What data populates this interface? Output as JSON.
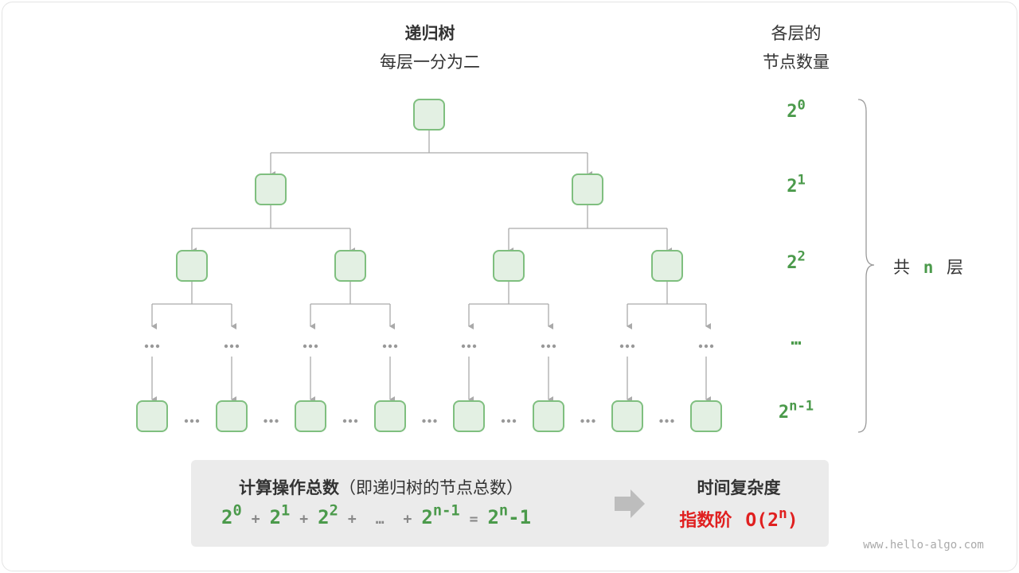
{
  "title": "递归树",
  "subtitle": "每层一分为二",
  "right_header": [
    "各层的",
    "节点数量"
  ],
  "levels": [
    {
      "base": "2",
      "exp": "0"
    },
    {
      "base": "2",
      "exp": "1"
    },
    {
      "base": "2",
      "exp": "2"
    },
    {
      "base": "…",
      "exp": ""
    },
    {
      "base": "2",
      "exp": "n-1"
    }
  ],
  "brace_label": {
    "pre": "共",
    "n": "n",
    "post": "层"
  },
  "summary": {
    "title": "计算操作总数",
    "title_note": "（即递归树的节点总数）",
    "formula": [
      {
        "base": "2",
        "exp": "0"
      },
      {
        "op": "+"
      },
      {
        "base": "2",
        "exp": "1"
      },
      {
        "op": "+"
      },
      {
        "base": "2",
        "exp": "2"
      },
      {
        "op": "+"
      },
      {
        "op": "…"
      },
      {
        "op": "+"
      },
      {
        "base": "2",
        "exp": "n-1"
      },
      {
        "op": "="
      },
      {
        "base": "2",
        "exp": "n",
        "tail": "-1"
      }
    ],
    "complexity_title": "时间复杂度",
    "complexity_name": "指数阶",
    "complexity_expr": {
      "pre": "O(2",
      "exp": "n",
      "post": ")"
    }
  },
  "watermark": "www.hello-algo.com",
  "colors": {
    "node_fill": "#e3f0e3",
    "node_stroke": "#7fbf7f",
    "edge": "#aaaaaa",
    "accent_green": "#4b9a4b",
    "accent_red": "#e02020"
  }
}
